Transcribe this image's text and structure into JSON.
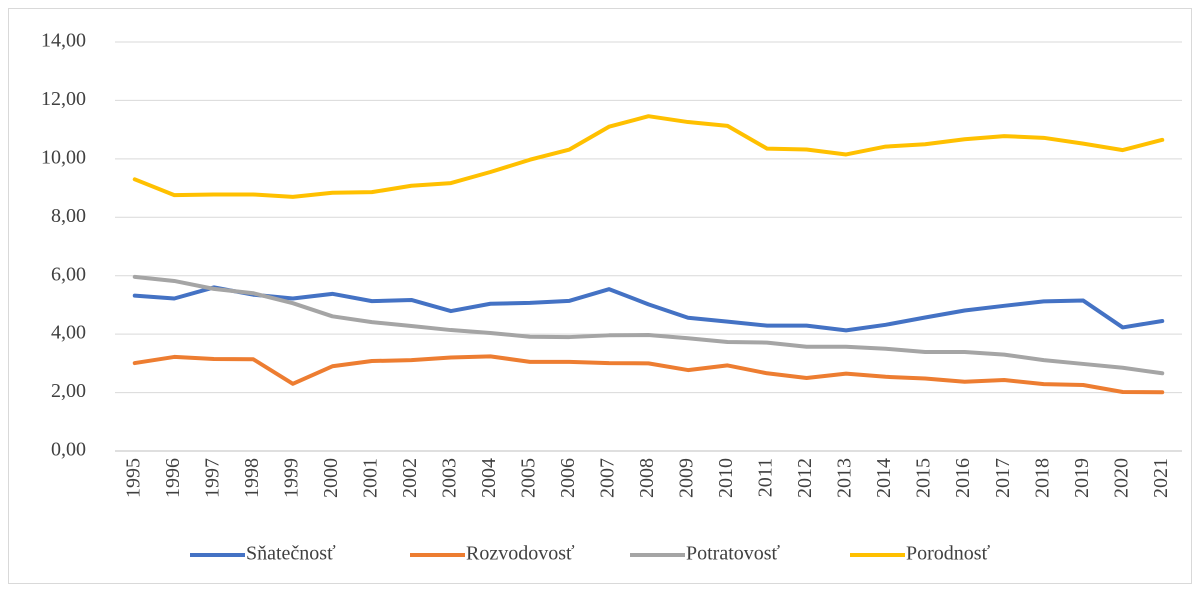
{
  "chart_data": {
    "type": "line",
    "categories": [
      "1995",
      "1996",
      "1997",
      "1998",
      "1999",
      "2000",
      "2001",
      "2002",
      "2003",
      "2004",
      "2005",
      "2006",
      "2007",
      "2008",
      "2009",
      "2010",
      "2011",
      "2012",
      "2013",
      "2014",
      "2015",
      "2016",
      "2017",
      "2018",
      "2019",
      "2020",
      "2021"
    ],
    "series": [
      {
        "name": "Sňatečnosť",
        "color": "#4472c4",
        "values": [
          5.32,
          5.22,
          5.6,
          5.35,
          5.22,
          5.38,
          5.13,
          5.17,
          4.79,
          5.04,
          5.07,
          5.14,
          5.54,
          5.02,
          4.56,
          4.43,
          4.29,
          4.29,
          4.13,
          4.32,
          4.57,
          4.81,
          4.97,
          5.12,
          5.15,
          4.23,
          4.45
        ]
      },
      {
        "name": "Rozvodovosť",
        "color": "#ed7d31",
        "values": [
          3.01,
          3.22,
          3.15,
          3.14,
          2.3,
          2.9,
          3.08,
          3.11,
          3.2,
          3.24,
          3.05,
          3.05,
          3.01,
          3.0,
          2.77,
          2.93,
          2.66,
          2.5,
          2.65,
          2.54,
          2.48,
          2.37,
          2.43,
          2.29,
          2.26,
          2.02,
          2.01
        ]
      },
      {
        "name": "Potratovosť",
        "color": "#a5a5a5",
        "values": [
          5.96,
          5.82,
          5.55,
          5.4,
          5.06,
          4.61,
          4.41,
          4.28,
          4.14,
          4.04,
          3.91,
          3.9,
          3.96,
          3.97,
          3.86,
          3.73,
          3.71,
          3.57,
          3.57,
          3.5,
          3.39,
          3.39,
          3.3,
          3.11,
          2.98,
          2.85,
          2.66
        ]
      },
      {
        "name": "Porodnosť",
        "color": "#ffc000",
        "values": [
          9.3,
          8.76,
          8.78,
          8.78,
          8.7,
          8.84,
          8.86,
          9.08,
          9.17,
          9.55,
          9.97,
          10.32,
          11.1,
          11.46,
          11.26,
          11.13,
          10.35,
          10.32,
          10.15,
          10.42,
          10.5,
          10.67,
          10.78,
          10.72,
          10.52,
          10.3,
          10.65
        ]
      }
    ],
    "ylim": [
      0,
      14
    ],
    "yticks": [
      {
        "value": 0,
        "label": "0,00"
      },
      {
        "value": 2,
        "label": "2,00"
      },
      {
        "value": 4,
        "label": "4,00"
      },
      {
        "value": 6,
        "label": "6,00"
      },
      {
        "value": 8,
        "label": "8,00"
      },
      {
        "value": 10,
        "label": "10,00"
      },
      {
        "value": 12,
        "label": "12,00"
      },
      {
        "value": 14,
        "label": "14,00"
      }
    ],
    "grid": true,
    "legend": "bottom"
  }
}
